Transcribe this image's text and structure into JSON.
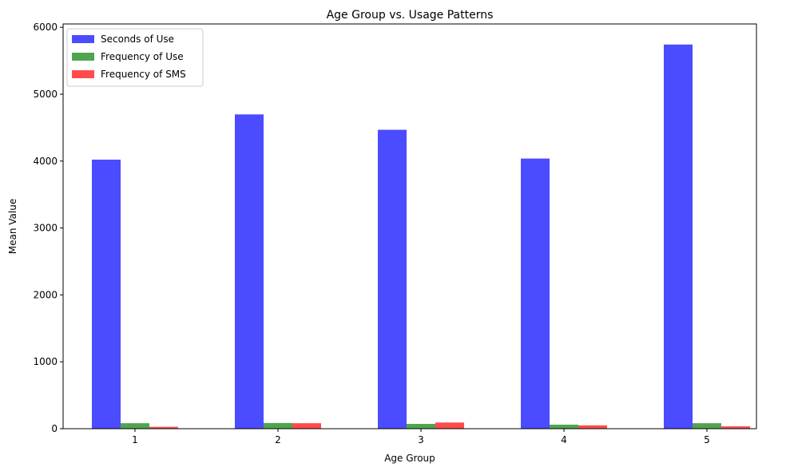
{
  "chart_data": {
    "type": "bar",
    "title": "Age Group vs. Usage Patterns",
    "xlabel": "Age Group",
    "ylabel": "Mean Value",
    "categories": [
      "1",
      "2",
      "3",
      "4",
      "5"
    ],
    "series": [
      {
        "name": "Seconds of Use",
        "color": "#4b4bff",
        "values": [
          4022,
          4698,
          4468,
          4038,
          5742
        ]
      },
      {
        "name": "Frequency of Use",
        "color": "#4fa54f",
        "values": [
          82,
          85,
          72,
          60,
          82
        ]
      },
      {
        "name": "Frequency of SMS",
        "color": "#ff4b4b",
        "values": [
          28,
          82,
          92,
          50,
          35
        ]
      }
    ],
    "ylim": [
      0,
      6050
    ],
    "yticks": [
      0,
      1000,
      2000,
      3000,
      4000,
      5000,
      6000
    ],
    "legend": "top-left",
    "grid": false
  }
}
